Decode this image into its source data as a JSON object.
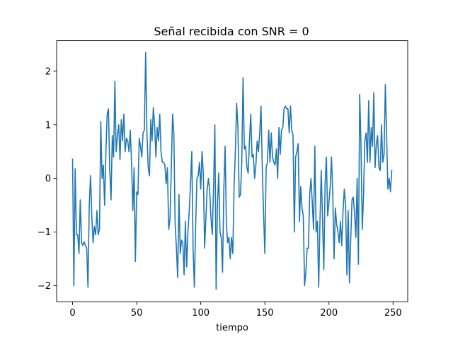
{
  "chart_data": {
    "type": "line",
    "title": "Señal recibida con SNR = 0",
    "xlabel": "tiempo",
    "ylabel": "",
    "xlim": [
      -12.45,
      261.45
    ],
    "ylim": [
      -2.3,
      2.57
    ],
    "xticks": [
      0,
      50,
      100,
      150,
      200,
      250
    ],
    "yticks": [
      -2,
      -1,
      0,
      1,
      2
    ],
    "grid": false,
    "series": [
      {
        "color": "#1f77b4",
        "x_start": 0,
        "x_step": 1,
        "values": [
          0.36,
          -2.0,
          0.18,
          -1.05,
          -1.05,
          -1.4,
          -0.4,
          -1.2,
          -1.25,
          -1.18,
          -1.25,
          -1.3,
          -2.03,
          -0.5,
          0.05,
          -0.7,
          -1.2,
          -0.9,
          -1.05,
          -0.6,
          -1.05,
          -0.95,
          1.06,
          0.0,
          0.25,
          -0.5,
          0.5,
          1.2,
          1.3,
          0.15,
          -0.4,
          0.8,
          0.4,
          1.81,
          0.5,
          0.8,
          1.0,
          0.35,
          1.1,
          0.7,
          1.2,
          0.5,
          0.75,
          0.7,
          0.5,
          0.9,
          0.3,
          -0.6,
          0.2,
          -1.55,
          -0.25,
          -0.3,
          0.75,
          0.6,
          0.4,
          0.85,
          0.9,
          2.35,
          0.85,
          0.2,
          0.05,
          1.1,
          0.7,
          1.32,
          1.0,
          0.4,
          0.95,
          0.7,
          1.2,
          0.5,
          0.3,
          0.3,
          0.25,
          -0.1,
          0.2,
          -0.95,
          -0.75,
          0.15,
          1.2,
          0.85,
          -0.85,
          -1.3,
          -1.85,
          -0.3,
          -1.4,
          -1.15,
          -1.2,
          -1.8,
          -0.8,
          -1.65,
          -1.0,
          -0.6,
          -0.1,
          0.5,
          -1.3,
          -2.03,
          -0.9,
          0.0,
          0.05,
          0.3,
          -0.2,
          0.5,
          0.1,
          -1.3,
          -0.75,
          -0.2,
          0.0,
          -0.25,
          -0.75,
          -1.05,
          -0.15,
          1.0,
          -2.07,
          -0.5,
          0.1,
          -1.0,
          -1.1,
          -1.75,
          -0.2,
          0.6,
          -0.85,
          -1.2,
          -1.1,
          -1.5,
          -1.1,
          -1.4,
          -0.15,
          0.5,
          1.4,
          0.95,
          -0.35,
          -0.3,
          0.3,
          1.88,
          0.55,
          0.6,
          0.2,
          0.1,
          0.7,
          1.2,
          0.4,
          0.45,
          0.0,
          0.25,
          0.7,
          0.5,
          0.85,
          1.35,
          0.2,
          -0.65,
          -1.4,
          0.2,
          0.3,
          0.9,
          0.3,
          0.85,
          0.4,
          0.3,
          0.25,
          0.55,
          0.0,
          0.95,
          0.45,
          0.9,
          0.95,
          1.3,
          1.35,
          1.3,
          1.3,
          0.85,
          1.35,
          0.9,
          0.8,
          -1.0,
          0.4,
          0.5,
          0.65,
          -0.8,
          -0.15,
          -0.55,
          -0.7,
          -2.0,
          -1.75,
          -1.3,
          -1.3,
          -0.3,
          0.0,
          -0.45,
          -0.95,
          0.6,
          -1.0,
          -0.8,
          -2.03,
          -0.8,
          0.15,
          -0.75,
          -1.7,
          -0.1,
          0.4,
          -0.7,
          -0.45,
          -0.15,
          0.4,
          -0.3,
          -1.5,
          -0.55,
          -0.85,
          -1.0,
          -1.2,
          -0.8,
          -1.25,
          -0.6,
          -0.2,
          -0.5,
          -1.8,
          -0.6,
          -1.95,
          -1.15,
          -0.4,
          -0.35,
          -0.65,
          -1.1,
          0.0,
          -1.6,
          1.57,
          0.65,
          -0.95,
          -0.3,
          0.7,
          0.85,
          0.3,
          1.45,
          0.3,
          0.95,
          0.6,
          1.6,
          0.2,
          0.65,
          0.8,
          0.2,
          0.15,
          1.0,
          0.3,
          0.45,
          1.75,
          0.8,
          -0.2,
          0.0,
          -0.25,
          0.15
        ]
      }
    ]
  }
}
